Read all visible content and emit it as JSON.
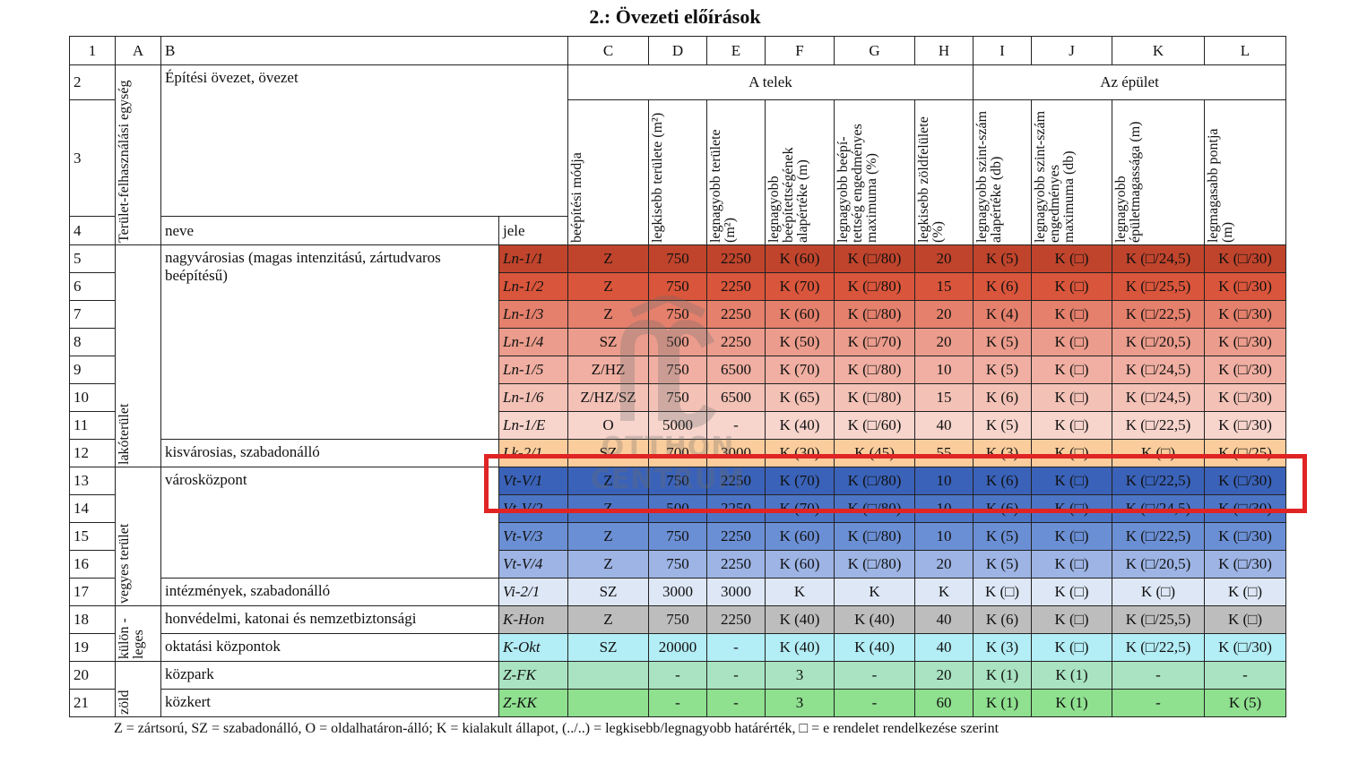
{
  "title": "2.: Övezeti előírások",
  "table": {
    "column_letters": [
      "1",
      "A",
      "B",
      "C",
      "D",
      "E",
      "F",
      "G",
      "H",
      "I",
      "J",
      "K",
      "L"
    ],
    "row2": {
      "number": "2",
      "zone_header": "Építési övezet, övezet",
      "plot_group": "A telek",
      "building_group": "Az épület"
    },
    "row3_number": "3",
    "area_unit_header": "Terület-felhasználási egység",
    "column_headers": [
      "beépítési módja",
      "legkisebb területe (m²)",
      "legnagyobb területe (m²)",
      "legnagyobb beépítettségének alapértéke (m)",
      "legnagyobb beépí-tettség engedményes maximuma (%)",
      "legkisebb zöldfelülete (%)",
      "legnagyobb szint-szám alapértéke (db)",
      "legnagyobb szint-szám engedményes maximuma (db)",
      "legnagyobb épületmagassága (m)",
      "legmagasabb pontja (m)"
    ],
    "row4": {
      "number": "4",
      "name": "neve",
      "code": "jele"
    },
    "groups": [
      {
        "label": "lakóterület",
        "zones": [
          {
            "name": "nagyvárosias (magas intenzitású, zártudvaros beépítésű)",
            "rows": [
              {
                "number": "5",
                "code": "Ln-1/1",
                "color": "#c0442c",
                "values": [
                  "Z",
                  "750",
                  "2250",
                  "K (60)",
                  "K (□/80)",
                  "20",
                  "K (5)",
                  "K (□)",
                  "K (□/24,5)",
                  "K (□/30)"
                ]
              },
              {
                "number": "6",
                "code": "Ln-1/2",
                "color": "#d9553b",
                "values": [
                  "Z",
                  "750",
                  "2250",
                  "K (70)",
                  "K (□/80)",
                  "15",
                  "K (6)",
                  "K (□)",
                  "K (□/25,5)",
                  "K (□/30)"
                ]
              },
              {
                "number": "7",
                "code": "Ln-1/3",
                "color": "#e4806c",
                "values": [
                  "Z",
                  "750",
                  "2250",
                  "K (60)",
                  "K (□/80)",
                  "20",
                  "K (4)",
                  "K (□)",
                  "K (□/22,5)",
                  "K (□/30)"
                ]
              },
              {
                "number": "8",
                "code": "Ln-1/4",
                "color": "#eb9c8c",
                "values": [
                  "SZ",
                  "500",
                  "2250",
                  "K (50)",
                  "K (□/70)",
                  "20",
                  "K (5)",
                  "K (□)",
                  "K (□/20,5)",
                  "K (□/30)"
                ]
              },
              {
                "number": "9",
                "code": "Ln-1/5",
                "color": "#f0afa2",
                "values": [
                  "Z/HZ",
                  "750",
                  "6500",
                  "K (70)",
                  "K (□/80)",
                  "10",
                  "K (5)",
                  "K (□)",
                  "K (□/24,5)",
                  "K (□/30)"
                ]
              },
              {
                "number": "10",
                "code": "Ln-1/6",
                "color": "#f3c1b6",
                "values": [
                  "Z/HZ/SZ",
                  "750",
                  "6500",
                  "K (65)",
                  "K (□/80)",
                  "15",
                  "K (6)",
                  "K (□)",
                  "K (□/24,5)",
                  "K (□/30)"
                ]
              },
              {
                "number": "11",
                "code": "Ln-1/E",
                "color": "#f7d4cc",
                "values": [
                  "O",
                  "5000",
                  "-",
                  "K (40)",
                  "K (□/60)",
                  "40",
                  "K (5)",
                  "K (□)",
                  "K (□/22,5)",
                  "K (□/30)"
                ]
              }
            ]
          },
          {
            "name": "kisvárosias, szabadonálló",
            "rows": [
              {
                "number": "12",
                "code": "Lk-2/1",
                "color": "#fbcc9c",
                "values": [
                  "SZ",
                  "700",
                  "3000",
                  "K (30)",
                  "K (45)",
                  "55",
                  "K (3)",
                  "K (□)",
                  "K (□)",
                  "K (□/25)"
                ]
              }
            ]
          }
        ]
      },
      {
        "label": "vegyes terület",
        "zones": [
          {
            "name": "városközpont",
            "rows": [
              {
                "number": "13",
                "code": "Vt-V/1",
                "color": "#3a62b8",
                "values": [
                  "Z",
                  "750",
                  "2250",
                  "K (70)",
                  "K (□/80)",
                  "10",
                  "K (6)",
                  "K (□)",
                  "K (□/22,5)",
                  "K (□/30)"
                ]
              },
              {
                "number": "14",
                "code": "Vt-V/2",
                "color": "#4d75c6",
                "values": [
                  "Z",
                  "500",
                  "2250",
                  "K (70)",
                  "K (□/80)",
                  "10",
                  "K (6)",
                  "K (□)",
                  "K (□/24,5)",
                  "K (□/30)"
                ]
              },
              {
                "number": "15",
                "code": "Vt-V/3",
                "color": "#6b8fd4",
                "values": [
                  "Z",
                  "750",
                  "2250",
                  "K (60)",
                  "K (□/80)",
                  "10",
                  "K (5)",
                  "K (□)",
                  "K (□/22,5)",
                  "K (□/30)"
                ]
              },
              {
                "number": "16",
                "code": "Vt-V/4",
                "color": "#9db4e4",
                "values": [
                  "Z",
                  "750",
                  "2250",
                  "K (60)",
                  "K (□/80)",
                  "20",
                  "K (5)",
                  "K (□)",
                  "K (□/20,5)",
                  "K (□/30)"
                ]
              }
            ]
          },
          {
            "name": "intézmények, szabadonálló",
            "rows": [
              {
                "number": "17",
                "code": "Vi-2/1",
                "color": "#dde7f6",
                "values": [
                  "SZ",
                  "3000",
                  "3000",
                  "K",
                  "K",
                  "K",
                  "K (□)",
                  "K (□)",
                  "K (□)",
                  "K (□)"
                ]
              }
            ]
          }
        ]
      },
      {
        "label": "külön -leges",
        "zones": [
          {
            "name": "honvédelmi, katonai és nemzetbiztonsági",
            "rows": [
              {
                "number": "18",
                "code": "K-Hon",
                "color": "#bdbdbd",
                "values": [
                  "Z",
                  "750",
                  "2250",
                  "K (40)",
                  "K (40)",
                  "40",
                  "K (6)",
                  "K (□)",
                  "K (□/25,5)",
                  "K (□)"
                ]
              }
            ]
          },
          {
            "name": "oktatási központok",
            "rows": [
              {
                "number": "19",
                "code": "K-Okt",
                "color": "#b3edf5",
                "values": [
                  "SZ",
                  "20000",
                  "-",
                  "K (40)",
                  "K (40)",
                  "40",
                  "K (3)",
                  "K (□)",
                  "K (□/22,5)",
                  "K (□/30)"
                ]
              }
            ]
          }
        ]
      },
      {
        "label": "zöld",
        "zones": [
          {
            "name": "közpark",
            "rows": [
              {
                "number": "20",
                "code": "Z-FK",
                "color": "#a9e3c1",
                "values": [
                  null,
                  "-",
                  "-",
                  "3",
                  "-",
                  "20",
                  "K (1)",
                  "K (1)",
                  "-",
                  "-"
                ]
              }
            ]
          },
          {
            "name": "közkert",
            "rows": [
              {
                "number": "21",
                "code": "Z-KK",
                "color": "#8fe08f",
                "values": [
                  null,
                  "-",
                  "-",
                  "3",
                  "-",
                  "60",
                  "K (1)",
                  "K (1)",
                  "-",
                  "K (5)"
                ]
              }
            ]
          }
        ]
      }
    ]
  },
  "footnote": "Z = zártsorú, SZ = szabadonálló, O = oldalhatáron-álló; K = kialakult állapot, (../..) = legkisebb/legnagyobb határérték, □ = e rendelet rendelkezése szerint",
  "watermark": [
    "OTTHON",
    "CENTRUM"
  ]
}
